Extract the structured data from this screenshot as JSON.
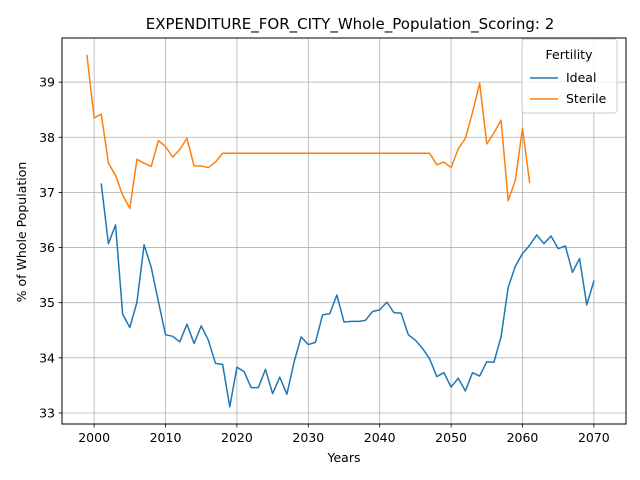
{
  "chart_data": {
    "type": "line",
    "title": "EXPENDITURE_FOR_CITY_Whole_Population_Scoring: 2",
    "xlabel": "Years",
    "ylabel": "% of Whole Population",
    "xlim": [
      1995.5,
      2074.5
    ],
    "ylim": [
      32.8,
      39.8
    ],
    "xticks": [
      2000,
      2010,
      2020,
      2030,
      2040,
      2050,
      2060,
      2070
    ],
    "yticks": [
      33,
      34,
      35,
      36,
      37,
      38,
      39
    ],
    "grid": true,
    "legend": {
      "title": "Fertility",
      "location": "top-right"
    },
    "series": [
      {
        "name": "Ideal",
        "color": "#1f77b4",
        "x": [
          2001,
          2002,
          2003,
          2004,
          2005,
          2006,
          2007,
          2008,
          2009,
          2010,
          2011,
          2012,
          2013,
          2014,
          2015,
          2016,
          2017,
          2018,
          2019,
          2020,
          2021,
          2022,
          2023,
          2024,
          2025,
          2026,
          2027,
          2028,
          2029,
          2030,
          2031,
          2032,
          2033,
          2034,
          2035,
          2036,
          2037,
          2038,
          2039,
          2040,
          2041,
          2042,
          2043,
          2044,
          2045,
          2046,
          2047,
          2048,
          2049,
          2050,
          2051,
          2052,
          2053,
          2054,
          2055,
          2056,
          2057,
          2058,
          2059,
          2060,
          2061,
          2062,
          2063,
          2064,
          2065,
          2066,
          2067,
          2068,
          2069,
          2070
        ],
        "values": [
          37.15,
          36.07,
          36.41,
          34.79,
          34.55,
          35.01,
          36.05,
          35.64,
          35.02,
          34.42,
          34.39,
          34.29,
          34.61,
          34.26,
          34.58,
          34.32,
          33.9,
          33.88,
          33.11,
          33.83,
          33.75,
          33.46,
          33.46,
          33.79,
          33.35,
          33.65,
          33.34,
          33.92,
          34.38,
          34.24,
          34.28,
          34.78,
          34.8,
          35.14,
          34.65,
          34.66,
          34.66,
          34.68,
          34.84,
          34.87,
          35.01,
          34.82,
          34.81,
          34.42,
          34.32,
          34.17,
          33.98,
          33.66,
          33.73,
          33.47,
          33.63,
          33.4,
          33.73,
          33.67,
          33.93,
          33.92,
          34.38,
          35.28,
          35.66,
          35.89,
          36.04,
          36.23,
          36.07,
          36.21,
          35.98,
          36.03,
          35.55,
          35.8,
          34.96,
          35.39
        ]
      },
      {
        "name": "Sterile",
        "color": "#ff7f0e",
        "x": [
          1999,
          2000,
          2001,
          2002,
          2003,
          2004,
          2005,
          2006,
          2007,
          2008,
          2009,
          2010,
          2011,
          2012,
          2013,
          2014,
          2015,
          2016,
          2017,
          2018,
          2019,
          2020,
          2021,
          2022,
          2023,
          2024,
          2025,
          2026,
          2027,
          2028,
          2029,
          2030,
          2031,
          2032,
          2033,
          2034,
          2035,
          2036,
          2037,
          2038,
          2039,
          2040,
          2041,
          2042,
          2043,
          2044,
          2045,
          2046,
          2047,
          2048,
          2049,
          2050,
          2051,
          2052,
          2053,
          2054,
          2055,
          2056,
          2057,
          2058,
          2059,
          2060,
          2061
        ],
        "values": [
          39.48,
          38.35,
          38.42,
          37.53,
          37.31,
          36.95,
          36.71,
          37.6,
          37.53,
          37.47,
          37.94,
          37.83,
          37.64,
          37.78,
          37.98,
          37.48,
          37.48,
          37.45,
          37.55,
          37.71,
          37.71,
          37.71,
          37.71,
          37.71,
          37.71,
          37.71,
          37.71,
          37.71,
          37.71,
          37.71,
          37.71,
          37.71,
          37.71,
          37.71,
          37.71,
          37.71,
          37.71,
          37.71,
          37.71,
          37.71,
          37.71,
          37.71,
          37.71,
          37.71,
          37.71,
          37.71,
          37.71,
          37.71,
          37.71,
          37.5,
          37.55,
          37.45,
          37.79,
          37.98,
          38.45,
          38.98,
          37.88,
          38.08,
          38.31,
          36.85,
          37.22,
          38.16,
          37.18
        ]
      }
    ]
  }
}
